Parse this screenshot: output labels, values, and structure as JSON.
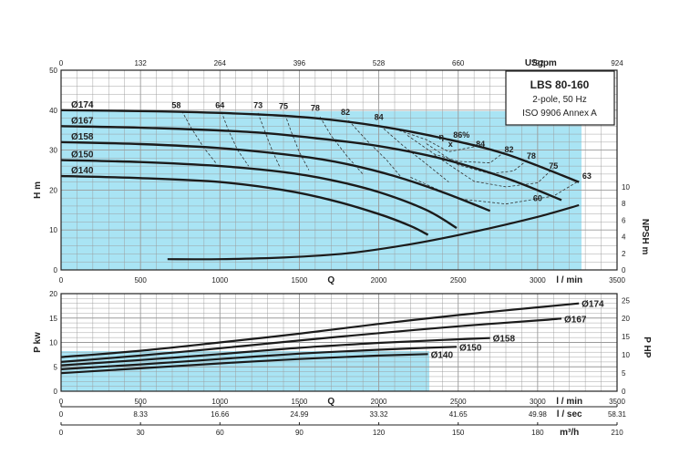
{
  "colors": {
    "fill": "#a9e4f4",
    "grid": "#9a9a9a",
    "curve": "#1b1b1b",
    "frame": "#222222"
  },
  "chart_data": [
    {
      "type": "line",
      "title": "LBS 80-160",
      "subtitle_lines": [
        "2-pole, 50 Hz",
        "ISO 9906 Annex A"
      ],
      "xlabel": "Q",
      "x_unit": "l / min",
      "xlim": [
        0,
        3500
      ],
      "x_ticks": [
        "0",
        "500",
        "1000",
        "1500",
        "2000",
        "2500",
        "3000",
        "3500"
      ],
      "top_axis_unit": "USgpm",
      "top_ticks": [
        "0",
        "132",
        "264",
        "396",
        "528",
        "660",
        "792",
        "924"
      ],
      "ylabel": "H m",
      "ylim": [
        0,
        50
      ],
      "y_ticks": [
        "0",
        "10",
        "20",
        "30",
        "40",
        "50"
      ],
      "y2label": "NPSH m",
      "y2lim": [
        0,
        10
      ],
      "y2_ticks": [
        "0",
        "2",
        "4",
        "6",
        "8",
        "10"
      ],
      "grid": true,
      "series": [
        {
          "name": "Ø174",
          "x": [
            0,
            600,
            1200,
            1600,
            2000,
            2400,
            2800,
            3260
          ],
          "y": [
            40,
            39.7,
            39,
            38,
            36,
            33,
            29,
            22
          ]
        },
        {
          "name": "Ø167",
          "x": [
            0,
            600,
            1200,
            1600,
            2000,
            2400,
            2800,
            3150
          ],
          "y": [
            36,
            35.5,
            34.5,
            33,
            31,
            27.8,
            23,
            17.5
          ]
        },
        {
          "name": "Ø158",
          "x": [
            0,
            500,
            1000,
            1500,
            1800,
            2100,
            2400,
            2700
          ],
          "y": [
            32,
            31.5,
            30.5,
            28.5,
            26.5,
            23.5,
            19.5,
            14.8
          ]
        },
        {
          "name": "Ø150",
          "x": [
            0,
            500,
            1000,
            1400,
            1700,
            2000,
            2300,
            2490
          ],
          "y": [
            27.5,
            27,
            26,
            24.5,
            22.5,
            19.5,
            15,
            10.5
          ]
        },
        {
          "name": "Ø140",
          "x": [
            0,
            500,
            1000,
            1400,
            1700,
            2000,
            2200,
            2310
          ],
          "y": [
            23.5,
            23,
            22,
            20,
            17.5,
            14,
            11,
            8.8
          ]
        }
      ],
      "npsh": {
        "x": [
          670,
          1000,
          1400,
          1800,
          2200,
          2600,
          3000,
          3260
        ],
        "y": [
          1.3,
          1.3,
          1.5,
          2.0,
          3.1,
          4.6,
          6.4,
          7.8
        ]
      },
      "efficiency_labels": [
        {
          "text": "58",
          "x": 725,
          "y": 40.5
        },
        {
          "text": "64",
          "x": 1000,
          "y": 40.5
        },
        {
          "text": "73",
          "x": 1240,
          "y": 40.5
        },
        {
          "text": "75",
          "x": 1400,
          "y": 40.3
        },
        {
          "text": "78",
          "x": 1600,
          "y": 39.8
        },
        {
          "text": "82",
          "x": 1790,
          "y": 38.8
        },
        {
          "text": "84",
          "x": 2000,
          "y": 37.6
        },
        {
          "text": "84",
          "x": 2640,
          "y": 30.8
        },
        {
          "text": "82",
          "x": 2820,
          "y": 29.5
        },
        {
          "text": "78",
          "x": 2960,
          "y": 27.8
        },
        {
          "text": "75",
          "x": 3100,
          "y": 25.3
        },
        {
          "text": "63",
          "x": 3310,
          "y": 22.8
        },
        {
          "text": "60",
          "x": 3000,
          "y": 17.2
        }
      ],
      "best_efficiency": {
        "text": "86%",
        "symbol": "η",
        "marker": "x",
        "x": 2440,
        "y": 32.6
      },
      "efficiency_lines": [
        {
          "x": [
            760,
            820,
            900,
            980
          ],
          "y": [
            39.8,
            35.5,
            30.5,
            26.5
          ]
        },
        {
          "x": [
            1010,
            1050,
            1110,
            1180
          ],
          "y": [
            39.6,
            35.3,
            30.1,
            26
          ]
        },
        {
          "x": [
            1240,
            1280,
            1330,
            1380
          ],
          "y": [
            39.3,
            35,
            29.8,
            25.5
          ]
        },
        {
          "x": [
            1410,
            1450,
            1500,
            1560
          ],
          "y": [
            38.9,
            34.5,
            29.5,
            25
          ]
        },
        {
          "x": [
            1630,
            1700,
            1800,
            1900
          ],
          "y": [
            38.3,
            33.6,
            28.5,
            24
          ]
        },
        {
          "x": [
            1810,
            1920,
            2050,
            2150
          ],
          "y": [
            37.4,
            32.6,
            27.5,
            22.8
          ]
        },
        {
          "x": [
            2010,
            2150,
            2300,
            2440
          ],
          "y": [
            36.1,
            31.2,
            26.5,
            22
          ]
        },
        {
          "x": [
            2100,
            2300,
            2440,
            2620
          ],
          "y": [
            35.3,
            32.6,
            29.6,
            31
          ]
        },
        {
          "x": [
            2180,
            2350,
            2500,
            2700,
            2800
          ],
          "y": [
            33.7,
            29,
            27.2,
            26.8,
            29.8
          ]
        },
        {
          "x": [
            2300,
            2500,
            2700,
            2850,
            2950
          ],
          "y": [
            31.6,
            26.3,
            24.1,
            24.8,
            28
          ]
        },
        {
          "x": [
            2350,
            2600,
            2800,
            3000,
            3100
          ],
          "y": [
            28.8,
            22.2,
            20.8,
            21.8,
            25.5
          ]
        },
        {
          "x": [
            2200,
            2500,
            2800,
            3100,
            3260
          ],
          "y": [
            23.2,
            17.8,
            16.5,
            18.5,
            22.3
          ]
        }
      ]
    },
    {
      "type": "line",
      "xlabel": "Q",
      "x_unit": "l / min",
      "xlim": [
        0,
        3500
      ],
      "x_ticks": [
        "0",
        "500",
        "1000",
        "1500",
        "2000",
        "2500",
        "3000",
        "3500"
      ],
      "secondary_x_axes": [
        {
          "unit": "l / sec",
          "ticks": [
            "0",
            "8.33",
            "16.66",
            "24.99",
            "33.32",
            "41.65",
            "49.98",
            "58.31"
          ]
        },
        {
          "unit": "m³/h",
          "ticks": [
            "0",
            "30",
            "60",
            "90",
            "120",
            "150",
            "180",
            "210"
          ]
        }
      ],
      "ylabel": "P kw",
      "ylim": [
        0,
        20
      ],
      "y_ticks": [
        "0",
        "5",
        "10",
        "15",
        "20"
      ],
      "y2label": "P HP",
      "y2_ticks": [
        "0",
        "5",
        "10",
        "15",
        "20",
        "25"
      ],
      "grid": true,
      "series": [
        {
          "name": "Ø174",
          "x": [
            0,
            500,
            1000,
            1500,
            2000,
            2500,
            3000,
            3260
          ],
          "y": [
            7.0,
            8.3,
            10.0,
            11.8,
            13.8,
            15.6,
            17.2,
            18.0
          ]
        },
        {
          "name": "Ø167",
          "x": [
            0,
            500,
            1000,
            1500,
            2000,
            2500,
            3000,
            3150
          ],
          "y": [
            6.0,
            7.3,
            8.8,
            10.4,
            11.9,
            13.3,
            14.5,
            14.9
          ]
        },
        {
          "name": "Ø158",
          "x": [
            0,
            500,
            1000,
            1500,
            2000,
            2400,
            2700
          ],
          "y": [
            5.3,
            6.4,
            7.6,
            8.9,
            9.9,
            10.5,
            10.9
          ]
        },
        {
          "name": "Ø150",
          "x": [
            0,
            500,
            1000,
            1500,
            2000,
            2300,
            2490
          ],
          "y": [
            4.5,
            5.5,
            6.6,
            7.7,
            8.5,
            8.9,
            9.1
          ]
        },
        {
          "name": "Ø140",
          "x": [
            0,
            500,
            1000,
            1500,
            2000,
            2310
          ],
          "y": [
            3.7,
            4.7,
            5.7,
            6.6,
            7.3,
            7.6
          ]
        }
      ]
    }
  ]
}
